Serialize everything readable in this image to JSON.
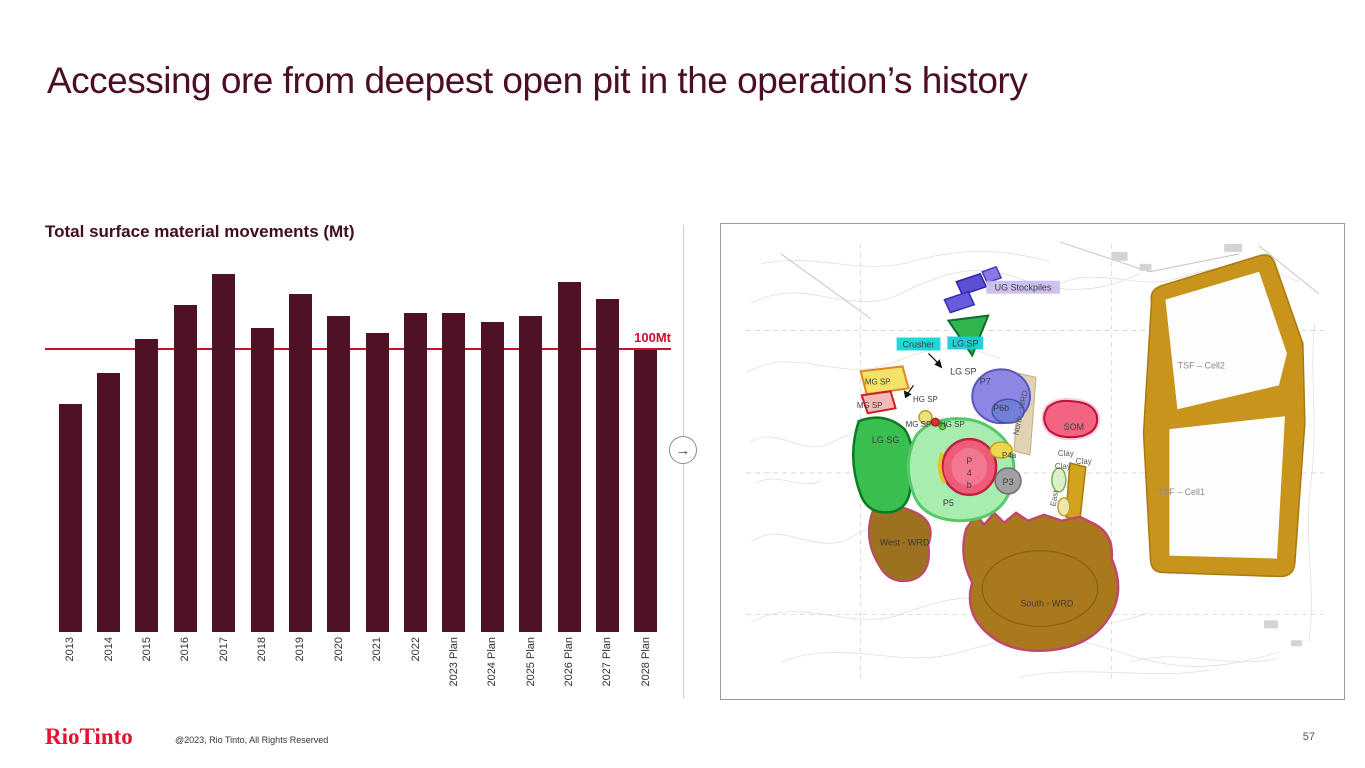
{
  "slide": {
    "title": "Accessing ore from deepest open pit in the operation’s history",
    "brand": "RioTinto",
    "footer_copyright": "@2023, Rio Tinto, All Rights Reserved",
    "page_number": "57"
  },
  "nav": {
    "next_label": "→"
  },
  "chart_data": {
    "type": "bar",
    "title": "Total surface material movements (Mt)",
    "categories": [
      "2013",
      "2014",
      "2015",
      "2016",
      "2017",
      "2018",
      "2019",
      "2020",
      "2021",
      "2022",
      "2023 Plan",
      "2024 Plan",
      "2025 Plan",
      "2026 Plan",
      "2027 Plan",
      "2028 Plan"
    ],
    "values": [
      80,
      91,
      103,
      115,
      126,
      107,
      119,
      111,
      105,
      112,
      112,
      109,
      111,
      123,
      117,
      99
    ],
    "ylim": [
      0,
      135
    ],
    "xlabel": "",
    "ylabel": "Mt",
    "grid": false,
    "legend": false,
    "bar_color": "#4f1126",
    "reference_line": {
      "value": 100,
      "label": "100Mt",
      "color": "#c8102e"
    }
  },
  "map": {
    "labels": {
      "ug_stockpiles": "UG Stockpiles",
      "crusher": "Crusher",
      "lg_sp_highlight": "LG SP",
      "lg_sp": "LG SP",
      "mg_sp_1": "MG SP",
      "hg_sp_1": "HG SP",
      "mg_sp_2": "MG SP",
      "mg_sp_3": "MG SP",
      "hg_sp_2": "HG SP",
      "p7": "P7",
      "p6b": "P6b",
      "north_wrd": "North - WRD",
      "som": "SOM",
      "tsf_cell2": "TSF – Cell2",
      "tsf_cell1": "TSF – Cell1",
      "p4a": "P4a",
      "clay_1": "Clay",
      "clay_2": "Clay",
      "clay_3": "Clay",
      "p4b_line1": "P",
      "p4b_line2": "4",
      "p4b_line3": "b",
      "p5": "P5",
      "p3": "P3",
      "east": "East",
      "lg_sg": "LG SG",
      "west_wrd": "West - WRD",
      "south_wrd": "South - WRD"
    }
  }
}
